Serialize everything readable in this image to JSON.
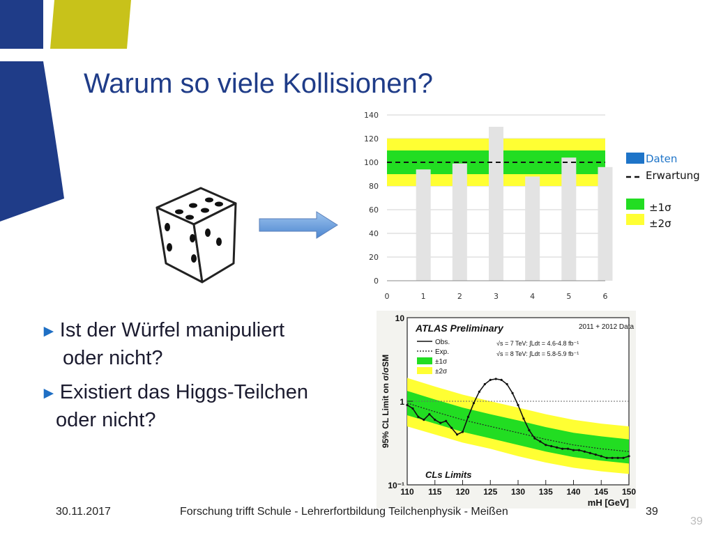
{
  "slide": {
    "title": "Warum so viele Kollisionen?",
    "bullets": [
      {
        "line1": "Ist der Würfel manipuliert",
        "line2": "oder nicht?"
      },
      {
        "line1": "Existiert das Higgs-Teilchen",
        "line2": "oder nicht?"
      }
    ],
    "bullet_marker": "►",
    "footer": {
      "date": "30.11.2017",
      "title": "Forschung trifft Schule - Lehrerfortbildung Teilchenphysik -  Meißen",
      "page": "39",
      "ghost_page": "39"
    },
    "colors": {
      "title": "#1f3c88",
      "deco_blue": "#1f3c88",
      "deco_yellow": "#c8c21a",
      "band_1sigma": "#22dd22",
      "band_2sigma": "#ffff33",
      "bar": "#e3e3e3",
      "daten_legend": "#1e74c8"
    }
  },
  "chart_data": [
    {
      "type": "bar",
      "x": [
        1,
        2,
        3,
        4,
        5,
        6
      ],
      "values": [
        94,
        99,
        130,
        88,
        104,
        96
      ],
      "expectation": 100,
      "band_1sigma": [
        90,
        110
      ],
      "band_2sigma": [
        80,
        120
      ],
      "xlim": [
        0,
        6
      ],
      "ylim": [
        0,
        140
      ],
      "x_ticks": [
        "0",
        "1",
        "2",
        "3",
        "4",
        "5",
        "6"
      ],
      "y_ticks": [
        "0",
        "20",
        "40",
        "60",
        "80",
        "100",
        "120",
        "140"
      ],
      "grid": true,
      "legend": {
        "position": "right",
        "entries": [
          "Daten",
          "Erwartung",
          "±1σ",
          "±2σ"
        ]
      }
    },
    {
      "type": "line",
      "title": "ATLAS Preliminary",
      "data_label": "2011 + 2012 Data",
      "energy_lines": [
        "√s = 7 TeV: ∫Ldt = 4.6-4.8 fb⁻¹",
        "√s = 8 TeV: ∫Ldt = 5.8-5.9 fb⁻¹"
      ],
      "ylabel": "95% CL Limit on σ/σSM",
      "xlabel": "mH [GeV]",
      "note": "CLs Limits",
      "xlim": [
        110,
        150
      ],
      "ylim": [
        0.1,
        10
      ],
      "yscale": "log",
      "x_ticks": [
        "110",
        "115",
        "120",
        "125",
        "130",
        "135",
        "140",
        "145",
        "150"
      ],
      "y_ticks": [
        "10⁻¹",
        "1",
        "10"
      ],
      "legend": {
        "position": "top-left",
        "entries": [
          "Obs.",
          "Exp.",
          "±1σ",
          "±2σ"
        ]
      },
      "series": [
        {
          "name": "Obs.",
          "x": [
            110,
            111,
            112,
            113,
            114,
            115,
            116,
            117,
            118,
            119,
            120,
            121,
            122,
            123,
            124,
            125,
            126,
            127,
            128,
            129,
            130,
            131,
            132,
            133,
            134,
            135,
            136,
            137,
            138,
            139,
            140,
            141,
            142,
            143,
            144,
            145,
            146,
            147,
            148,
            149,
            150
          ],
          "values": [
            0.9,
            0.82,
            0.65,
            0.6,
            0.7,
            0.6,
            0.55,
            0.58,
            0.48,
            0.4,
            0.43,
            0.65,
            0.95,
            1.3,
            1.6,
            1.8,
            1.85,
            1.8,
            1.6,
            1.25,
            0.9,
            0.62,
            0.45,
            0.36,
            0.33,
            0.3,
            0.29,
            0.28,
            0.27,
            0.27,
            0.26,
            0.26,
            0.25,
            0.24,
            0.23,
            0.22,
            0.21,
            0.21,
            0.21,
            0.21,
            0.22
          ]
        },
        {
          "name": "Exp.",
          "x": [
            110,
            115,
            120,
            125,
            130,
            135,
            140,
            145,
            150
          ],
          "values": [
            0.95,
            0.75,
            0.6,
            0.5,
            0.42,
            0.35,
            0.3,
            0.27,
            0.25
          ]
        }
      ],
      "band_1sigma": {
        "x": [
          110,
          115,
          120,
          125,
          130,
          135,
          140,
          145,
          150
        ],
        "low": [
          0.68,
          0.54,
          0.43,
          0.36,
          0.3,
          0.25,
          0.215,
          0.195,
          0.18
        ],
        "high": [
          1.33,
          1.05,
          0.84,
          0.7,
          0.59,
          0.49,
          0.42,
          0.38,
          0.35
        ]
      },
      "band_2sigma": {
        "x": [
          110,
          115,
          120,
          125,
          130,
          135,
          140,
          145,
          150
        ],
        "low": [
          0.5,
          0.4,
          0.32,
          0.27,
          0.22,
          0.185,
          0.16,
          0.145,
          0.135
        ],
        "high": [
          1.9,
          1.5,
          1.2,
          1.0,
          0.84,
          0.7,
          0.6,
          0.54,
          0.5
        ]
      },
      "reference_line": 1
    }
  ]
}
